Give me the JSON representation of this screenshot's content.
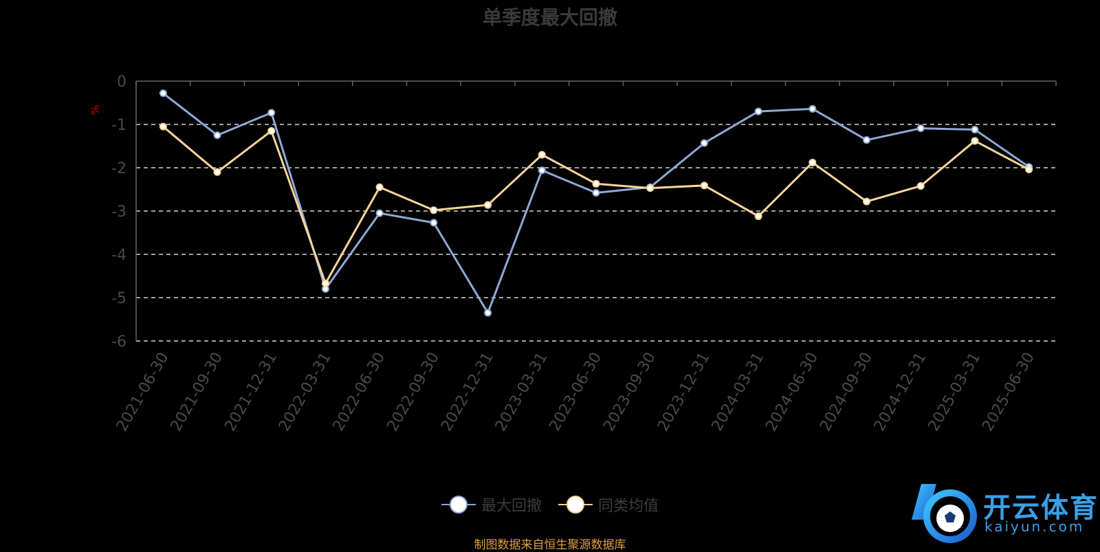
{
  "chart_data": {
    "type": "line",
    "title": "单季度最大回撤",
    "ylabel": "%",
    "ylim": [
      -6,
      0
    ],
    "yticks": [
      0,
      -1,
      -2,
      -3,
      -4,
      -5,
      -6
    ],
    "grid": "dashed horizontal",
    "legend_position": "bottom-center",
    "categories": [
      "2021-06-30",
      "2021-09-30",
      "2021-12-31",
      "2022-03-31",
      "2022-06-30",
      "2022-09-30",
      "2022-12-31",
      "2023-03-31",
      "2023-06-30",
      "2023-09-30",
      "2023-12-31",
      "2024-03-31",
      "2024-06-30",
      "2024-09-30",
      "2024-12-31",
      "2025-03-31",
      "2025-06-30"
    ],
    "series": [
      {
        "name": "最大回撤",
        "color": "#8fa9d6",
        "values": [
          -0.28,
          -1.25,
          -0.73,
          -4.8,
          -3.05,
          -3.27,
          -5.35,
          -2.06,
          -2.58,
          -2.45,
          -1.43,
          -0.7,
          -0.64,
          -1.36,
          -1.09,
          -1.12,
          -1.98
        ]
      },
      {
        "name": "同类均值",
        "color": "#f8d69a",
        "values": [
          -1.05,
          -2.1,
          -1.15,
          -4.67,
          -2.45,
          -2.98,
          -2.86,
          -1.7,
          -2.37,
          -2.47,
          -2.41,
          -3.12,
          -1.88,
          -2.78,
          -2.42,
          -1.38,
          -2.04
        ]
      }
    ]
  },
  "source_note": "制图数据来自恒生聚源数据库",
  "logo": {
    "cn": "开云体育",
    "en": "kaiyun.com"
  }
}
